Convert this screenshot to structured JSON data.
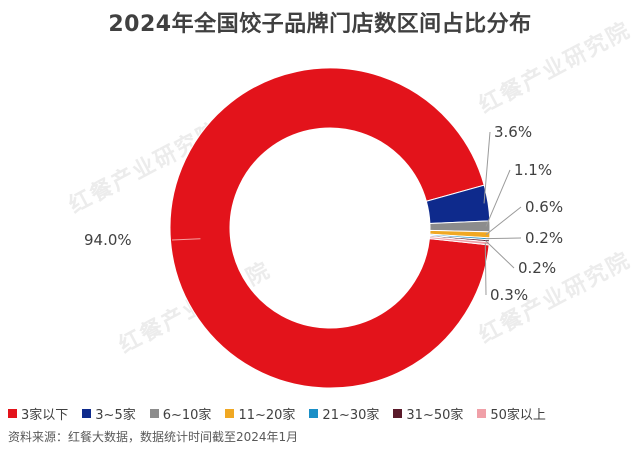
{
  "chart_data": {
    "type": "pie",
    "title": "2024年全国饺子品牌门店数区间占比分布",
    "categories": [
      "3家以下",
      "3~5家",
      "6~10家",
      "11~20家",
      "21~30家",
      "31~50家",
      "50家以上"
    ],
    "values": [
      94.0,
      3.6,
      1.1,
      0.6,
      0.2,
      0.2,
      0.3
    ],
    "value_labels": [
      "94.0%",
      "3.6%",
      "1.1%",
      "0.6%",
      "0.2%",
      "0.2%",
      "0.3%"
    ],
    "colors": [
      "#e3131b",
      "#0e2a8c",
      "#8c8c8c",
      "#f0a823",
      "#1a8fc7",
      "#5a1a2a",
      "#f0a0a8"
    ],
    "donut": true,
    "legend_position": "bottom"
  },
  "source_text": "资料来源：红餐大数据，数据统计时间截至2024年1月",
  "watermark": "红餐产业研究院"
}
